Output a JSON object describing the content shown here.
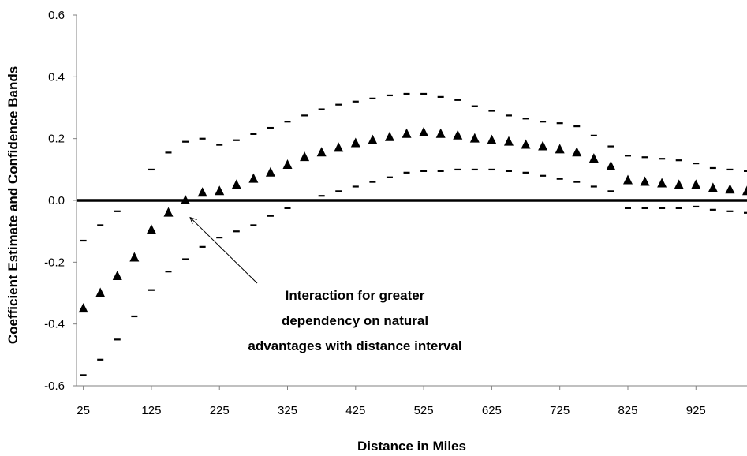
{
  "chart_data": {
    "type": "scatter",
    "title": "",
    "xlabel": "Distance in Miles",
    "ylabel": "Coefficient Estimate and Confidence Bands",
    "xlim": [
      15,
      1000
    ],
    "ylim": [
      -0.6,
      0.6
    ],
    "x_ticks": [
      25,
      125,
      225,
      325,
      425,
      525,
      625,
      725,
      825,
      925
    ],
    "y_ticks": [
      -0.6,
      -0.4,
      -0.2,
      0.0,
      0.2,
      0.4,
      0.6
    ],
    "y_tick_labels": [
      "-0.6",
      "-0.4",
      "-0.2",
      "0.0",
      "0.2",
      "0.4",
      "0.6"
    ],
    "grid": false,
    "legend": "none",
    "zero_line": true,
    "x": [
      25,
      50,
      75,
      100,
      125,
      150,
      175,
      200,
      225,
      250,
      275,
      300,
      325,
      350,
      375,
      400,
      425,
      450,
      475,
      500,
      525,
      550,
      575,
      600,
      625,
      650,
      675,
      700,
      725,
      750,
      775,
      800,
      825,
      850,
      875,
      900,
      925,
      950,
      975,
      1000
    ],
    "series": [
      {
        "role": "estimate",
        "marker": "triangle",
        "values": [
          -0.35,
          -0.3,
          -0.245,
          -0.185,
          -0.095,
          -0.04,
          0.0,
          0.025,
          0.03,
          0.05,
          0.07,
          0.09,
          0.115,
          0.14,
          0.155,
          0.17,
          0.185,
          0.195,
          0.205,
          0.215,
          0.22,
          0.215,
          0.21,
          0.2,
          0.195,
          0.19,
          0.18,
          0.175,
          0.165,
          0.155,
          0.135,
          0.11,
          0.065,
          0.06,
          0.055,
          0.05,
          0.05,
          0.04,
          0.035,
          0.03
        ]
      },
      {
        "role": "upper_band",
        "marker": "dash",
        "values": [
          -0.13,
          -0.08,
          -0.035,
          null,
          0.1,
          0.155,
          0.19,
          0.2,
          0.18,
          0.195,
          0.215,
          0.235,
          0.255,
          0.275,
          0.295,
          0.31,
          0.32,
          0.33,
          0.34,
          0.345,
          0.345,
          0.335,
          0.325,
          0.305,
          0.29,
          0.275,
          0.265,
          0.255,
          0.25,
          0.24,
          0.21,
          0.175,
          0.145,
          0.14,
          0.135,
          0.13,
          0.12,
          0.105,
          0.1,
          0.095
        ]
      },
      {
        "role": "lower_band",
        "marker": "dash",
        "values": [
          -0.565,
          -0.515,
          -0.45,
          -0.375,
          -0.29,
          -0.23,
          -0.19,
          -0.15,
          -0.12,
          -0.1,
          -0.08,
          -0.05,
          -0.025,
          0.0,
          0.015,
          0.03,
          0.045,
          0.06,
          0.075,
          0.09,
          0.095,
          0.095,
          0.1,
          0.1,
          0.1,
          0.095,
          0.09,
          0.08,
          0.07,
          0.06,
          0.045,
          0.03,
          -0.025,
          -0.025,
          -0.025,
          -0.025,
          -0.02,
          -0.03,
          -0.035,
          -0.04
        ]
      }
    ],
    "annotations": [
      {
        "lines": [
          "Interaction for greater",
          "dependency on natural",
          "advantages with distance interval"
        ],
        "arrow_target": [
          175,
          -0.045
        ]
      }
    ]
  }
}
